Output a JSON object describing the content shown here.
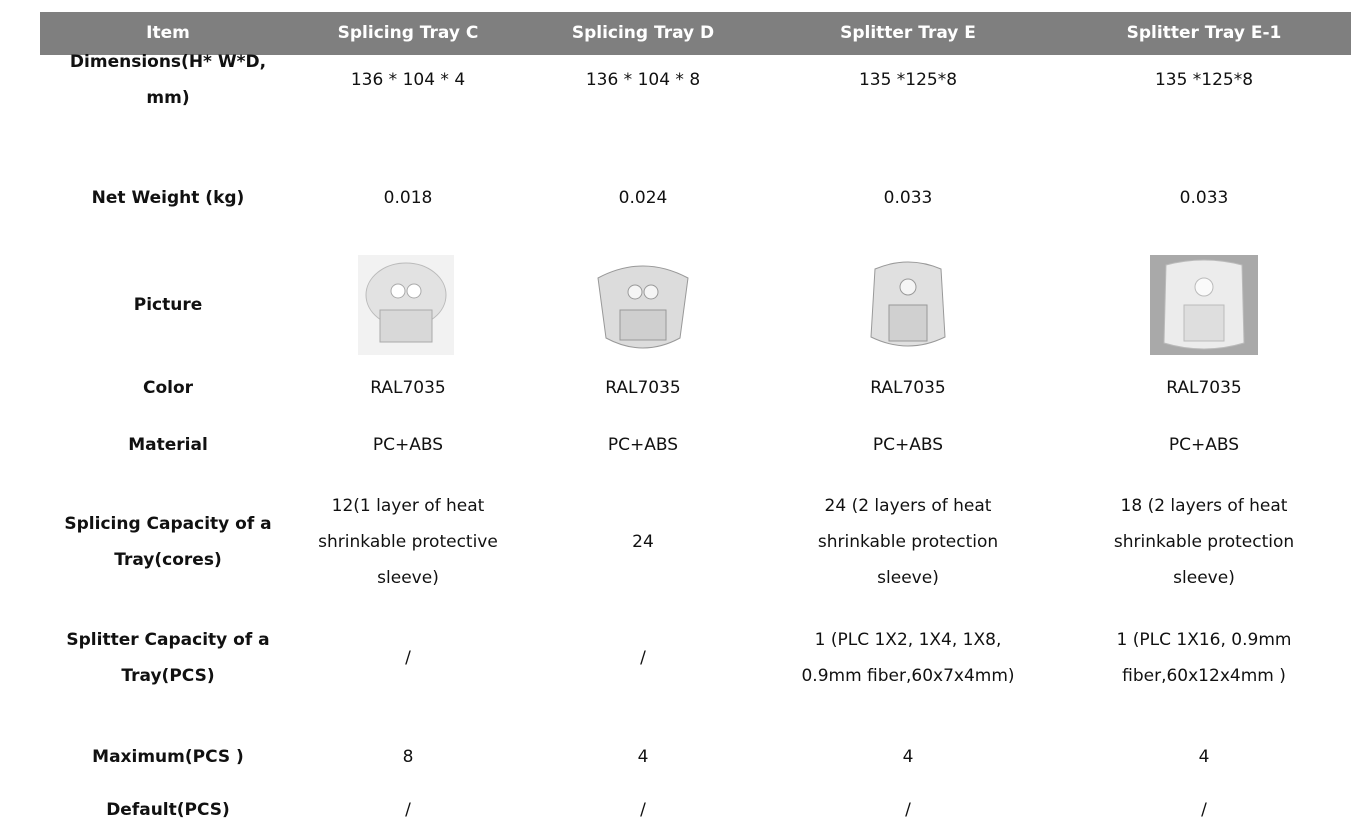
{
  "table": {
    "header": [
      "Item",
      "Splicing Tray C",
      "Splicing Tray D",
      "Splitter Tray E",
      "Splitter Tray E-1"
    ],
    "rows": [
      {
        "label": "Dimensions(H* W*D, mm)",
        "cells": [
          "136 * 104 * 4",
          "136 * 104 * 8",
          "135 *125*8",
          "135 *125*8"
        ]
      },
      {
        "label": "Net Weight (kg)",
        "cells": [
          "0.018",
          "0.024",
          "0.033",
          "0.033"
        ]
      },
      {
        "label": "Picture"
      },
      {
        "label": "Color",
        "cells": [
          "RAL7035",
          "RAL7035",
          "RAL7035",
          "RAL7035"
        ]
      },
      {
        "label": "Material",
        "cells": [
          "PC+ABS",
          "PC+ABS",
          "PC+ABS",
          "PC+ABS"
        ]
      },
      {
        "label": "Splicing Capacity of a Tray(cores)",
        "cells": [
          "12(1 layer of heat shrinkable protective sleeve)",
          "24",
          "24 (2 layers of heat shrinkable protection sleeve)",
          "18 (2 layers of heat shrinkable protection sleeve)"
        ]
      },
      {
        "label": "Splitter Capacity of a Tray(PCS)",
        "cells": [
          "/",
          "/",
          "1 (PLC 1X2, 1X4, 1X8, 0.9mm fiber,60x7x4mm)",
          "1 (PLC 1X16, 0.9mm fiber,60x12x4mm )"
        ]
      },
      {
        "label": "Maximum(PCS )",
        "cells": [
          "8",
          "4",
          "4",
          "4"
        ]
      },
      {
        "label": "Default(PCS)",
        "cells": [
          "/",
          "/",
          "/",
          "/"
        ]
      }
    ]
  }
}
